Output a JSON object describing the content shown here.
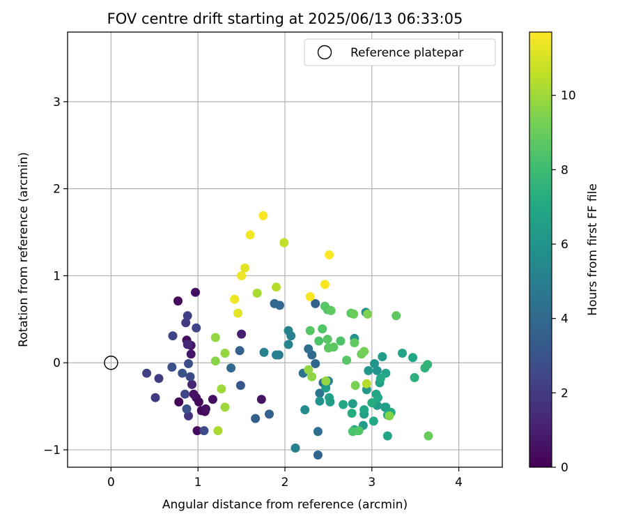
{
  "chart_data": {
    "type": "scatter",
    "title": "FOV centre drift starting at 2025/06/13 06:33:05",
    "xlabel": "Angular distance from reference (arcmin)",
    "ylabel": "Rotation from reference (arcmin)",
    "xlim": [
      -0.5,
      4.5
    ],
    "ylim": [
      -1.2,
      3.8
    ],
    "xticks": [
      0,
      1,
      2,
      3,
      4
    ],
    "yticks": [
      -1,
      0,
      1,
      2,
      3
    ],
    "xtick_labels": [
      "0",
      "1",
      "2",
      "3",
      "4"
    ],
    "ytick_labels": [
      "−1",
      "0",
      "1",
      "2",
      "3"
    ],
    "grid": true,
    "legend": {
      "position": "top-right",
      "label": "Reference platepar",
      "marker": "open-circle"
    },
    "reference_point": {
      "x": 0,
      "y": 0
    },
    "colorbar": {
      "label": "Hours from first FF file",
      "colormap": "viridis",
      "range": [
        0,
        11.7
      ],
      "ticks": [
        0,
        2,
        4,
        6,
        8,
        10
      ],
      "tick_labels": [
        "0",
        "2",
        "4",
        "6",
        "8",
        "10"
      ]
    },
    "points": [
      [
        0.97,
        0.81,
        0.4
      ],
      [
        0.77,
        0.71,
        0.3
      ],
      [
        0.87,
        0.26,
        0.5
      ],
      [
        0.92,
        0.2,
        0.8
      ],
      [
        0.92,
        0.1,
        0.7
      ],
      [
        0.95,
        -0.36,
        0.6
      ],
      [
        0.98,
        -0.4,
        0.4
      ],
      [
        1.01,
        -0.45,
        0.2
      ],
      [
        0.78,
        -0.45,
        0.1
      ],
      [
        1.04,
        -0.55,
        0.2
      ],
      [
        1.08,
        -0.56,
        0.3
      ],
      [
        1.09,
        -0.53,
        0.5
      ],
      [
        0.99,
        -0.78,
        0.3
      ],
      [
        1.17,
        -0.42,
        0.4
      ],
      [
        1.73,
        -0.42,
        0.6
      ],
      [
        1.5,
        0.33,
        1.0
      ],
      [
        0.93,
        -0.25,
        1.2
      ],
      [
        0.88,
        0.21,
        1.3
      ],
      [
        0.88,
        0.54,
        2.2
      ],
      [
        0.86,
        0.46,
        2.0
      ],
      [
        0.98,
        0.4,
        2.4
      ],
      [
        0.71,
        0.31,
        2.3
      ],
      [
        0.41,
        -0.12,
        2.2
      ],
      [
        0.55,
        -0.18,
        2.1
      ],
      [
        0.51,
        -0.4,
        2.0
      ],
      [
        0.89,
        -0.61,
        1.8
      ],
      [
        0.85,
        -0.36,
        2.5
      ],
      [
        0.91,
        -0.16,
        2.6
      ],
      [
        0.89,
        -0.01,
        2.8
      ],
      [
        0.7,
        -0.05,
        2.9
      ],
      [
        0.82,
        -0.12,
        3.0
      ],
      [
        0.87,
        -0.53,
        3.0
      ],
      [
        1.07,
        -0.78,
        2.7
      ],
      [
        1.49,
        -0.26,
        3.2
      ],
      [
        1.48,
        0.14,
        3.6
      ],
      [
        1.38,
        -0.06,
        4.0
      ],
      [
        1.66,
        -0.64,
        3.5
      ],
      [
        1.82,
        -0.59,
        3.5
      ],
      [
        1.76,
        0.12,
        5.0
      ],
      [
        1.88,
        0.68,
        4.0
      ],
      [
        1.94,
        0.66,
        4.0
      ],
      [
        1.93,
        0.09,
        4.8
      ],
      [
        1.9,
        0.09,
        5.0
      ],
      [
        2.04,
        0.37,
        5.1
      ],
      [
        2.07,
        0.31,
        5.0
      ],
      [
        2.04,
        0.21,
        5.2
      ],
      [
        2.12,
        -0.98,
        5.0
      ],
      [
        2.21,
        -0.12,
        4.5
      ],
      [
        2.23,
        -0.54,
        5.6
      ],
      [
        2.27,
        0.16,
        4.2
      ],
      [
        2.31,
        0.09,
        4.0
      ],
      [
        2.35,
        -0.01,
        4.0
      ],
      [
        2.35,
        0.68,
        3.6
      ],
      [
        2.38,
        -1.06,
        3.8
      ],
      [
        2.38,
        -0.79,
        4.2
      ],
      [
        2.4,
        -0.35,
        4.5
      ],
      [
        2.44,
        -0.23,
        4.0
      ],
      [
        2.47,
        -0.24,
        4.6
      ],
      [
        2.5,
        -0.21,
        5.2
      ],
      [
        2.4,
        -0.44,
        6.0
      ],
      [
        2.47,
        -0.29,
        6.4
      ],
      [
        2.51,
        -0.4,
        6.6
      ],
      [
        2.52,
        -0.45,
        6.5
      ],
      [
        2.67,
        -0.48,
        7.0
      ],
      [
        2.78,
        -0.47,
        6.5
      ],
      [
        2.77,
        -0.58,
        7.2
      ],
      [
        2.8,
        -0.77,
        6.9
      ],
      [
        2.84,
        -0.78,
        7.4
      ],
      [
        2.9,
        -0.72,
        6.4
      ],
      [
        2.91,
        -0.59,
        6.6
      ],
      [
        2.91,
        -0.54,
        6.9
      ],
      [
        2.94,
        -0.31,
        6.2
      ],
      [
        2.96,
        -0.09,
        6.2
      ],
      [
        2.93,
        0.58,
        5.8
      ],
      [
        2.8,
        0.28,
        6.0
      ],
      [
        3.0,
        -0.46,
        7.2
      ],
      [
        3.02,
        -0.67,
        7.0
      ],
      [
        3.03,
        -0.01,
        6.0
      ],
      [
        3.05,
        -0.36,
        6.8
      ],
      [
        3.06,
        -0.09,
        6.0
      ],
      [
        3.06,
        -0.49,
        6.4
      ],
      [
        3.09,
        -0.23,
        6.6
      ],
      [
        3.1,
        -0.18,
        7.0
      ],
      [
        3.07,
        -0.4,
        7.0
      ],
      [
        3.12,
        0.07,
        6.4
      ],
      [
        3.15,
        -0.51,
        6.5
      ],
      [
        3.16,
        -0.12,
        6.8
      ],
      [
        3.18,
        -0.6,
        7.0
      ],
      [
        3.18,
        -0.84,
        6.8
      ],
      [
        3.16,
        -0.51,
        6.6
      ],
      [
        3.22,
        -0.57,
        7.1
      ],
      [
        3.35,
        0.11,
        6.8
      ],
      [
        3.47,
        0.06,
        6.9
      ],
      [
        3.49,
        -0.17,
        7.4
      ],
      [
        3.61,
        -0.06,
        7.5
      ],
      [
        3.64,
        -0.02,
        7.6
      ],
      [
        2.29,
        0.37,
        8.6
      ],
      [
        2.39,
        0.25,
        8.4
      ],
      [
        2.49,
        0.27,
        8.6
      ],
      [
        2.43,
        0.39,
        8.5
      ],
      [
        2.46,
        0.65,
        8.6
      ],
      [
        2.49,
        0.61,
        8.5
      ],
      [
        2.53,
        0.6,
        8.8
      ],
      [
        2.5,
        0.17,
        8.7
      ],
      [
        2.56,
        0.18,
        8.7
      ],
      [
        2.64,
        0.25,
        8.4
      ],
      [
        2.71,
        0.03,
        8.6
      ],
      [
        2.76,
        0.57,
        8.8
      ],
      [
        2.79,
        0.56,
        9.0
      ],
      [
        2.8,
        0.23,
        8.8
      ],
      [
        2.88,
        0.1,
        9.1
      ],
      [
        2.91,
        0.13,
        9.2
      ],
      [
        2.95,
        0.56,
        9.4
      ],
      [
        2.81,
        -0.26,
        9.3
      ],
      [
        2.78,
        -0.79,
        8.3
      ],
      [
        2.85,
        -0.78,
        8.5
      ],
      [
        3.28,
        0.54,
        8.8
      ],
      [
        3.2,
        -0.61,
        9.5
      ],
      [
        3.65,
        -0.84,
        9.0
      ],
      [
        2.27,
        -0.08,
        9.8
      ],
      [
        2.31,
        -0.16,
        9.7
      ],
      [
        2.47,
        -0.21,
        9.8
      ],
      [
        2.94,
        -0.24,
        10.4
      ],
      [
        1.2,
        0.29,
        9.8
      ],
      [
        1.31,
        0.11,
        9.8
      ],
      [
        1.2,
        0.02,
        9.6
      ],
      [
        1.27,
        -0.3,
        10.0
      ],
      [
        1.31,
        -0.51,
        10.0
      ],
      [
        1.23,
        -0.78,
        10.2
      ],
      [
        1.68,
        0.8,
        10.2
      ],
      [
        1.9,
        0.87,
        10.4
      ],
      [
        1.99,
        1.38,
        10.6
      ],
      [
        1.42,
        0.73,
        11.4
      ],
      [
        1.46,
        0.57,
        11.2
      ],
      [
        1.5,
        1.0,
        11.4
      ],
      [
        1.54,
        1.09,
        11.2
      ],
      [
        1.6,
        1.47,
        11.5
      ],
      [
        1.75,
        1.69,
        11.6
      ],
      [
        2.29,
        0.76,
        11.6
      ],
      [
        2.46,
        0.9,
        11.6
      ],
      [
        2.51,
        1.24,
        11.7
      ]
    ]
  }
}
